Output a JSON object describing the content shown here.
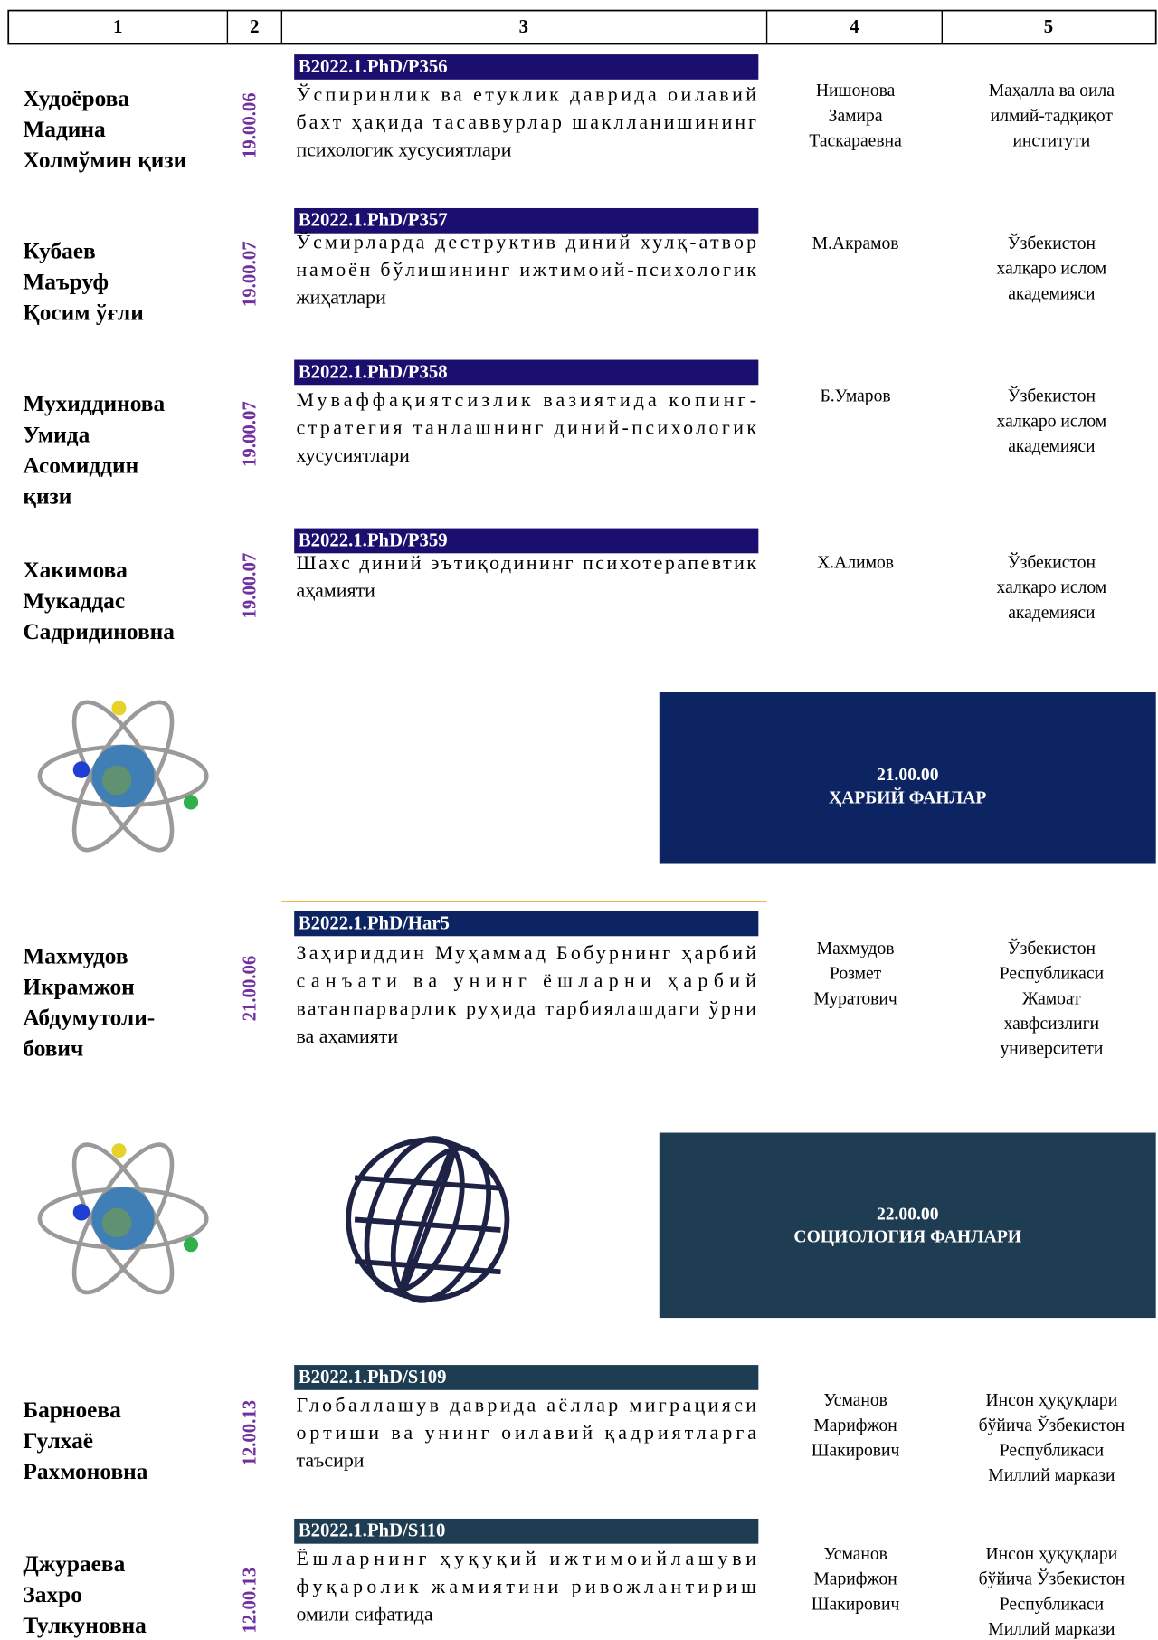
{
  "header": [
    "1",
    "2",
    "3",
    "4",
    "5"
  ],
  "entries": [
    {
      "name": [
        "Худоёрова",
        "Мадина",
        "Холмўмин қизи"
      ],
      "specialty": "19.00.06",
      "reg": "B2022.1.PhD/P356",
      "title": [
        "Ўспиринлик ва етуклик даврида оилавий",
        "бахт ҳақида тасаввурлар шаклланишининг",
        "психологик хусусиятлари"
      ],
      "advisor": [
        "Нишонова",
        "Замира",
        "Таскараевна"
      ],
      "institution": [
        "Маҳалла ва оила",
        "илмий-тадқиқот",
        "институти"
      ]
    },
    {
      "name": [
        "Кубаев",
        "Маъруф",
        "Қосим ўғли"
      ],
      "specialty": "19.00.07",
      "reg": "B2022.1.PhD/P357",
      "title": [
        "Ўсмирларда деструктив диний хулқ-атвор",
        "намоён бўлишининг ижтимоий-психологик",
        "жиҳатлари"
      ],
      "advisor": [
        "М.Акрамов"
      ],
      "institution": [
        "Ўзбекистон",
        "халқаро ислом",
        "академияси"
      ]
    },
    {
      "name": [
        "Мухиддинова",
        "Умида",
        "Асомиддин",
        "қизи"
      ],
      "specialty": "19.00.07",
      "reg": "B2022.1.PhD/P358",
      "title": [
        "Муваффақиятсизлик вазиятида копинг-",
        "стратегия танлашнинг диний-психологик",
        "хусусиятлари"
      ],
      "advisor": [
        "Б.Умаров"
      ],
      "institution": [
        "Ўзбекистон",
        "халқаро ислом",
        "академияси"
      ]
    },
    {
      "name": [
        "Хакимова",
        "Мукаддас",
        "Садридиновна"
      ],
      "specialty": "19.00.07",
      "reg": "B2022.1.PhD/P359",
      "title": [
        "Шахс диний эътиқодининг психотерапевтик",
        "аҳамияти"
      ],
      "advisor": [
        "Х.Алимов"
      ],
      "institution": [
        "Ўзбекистон",
        "халқаро ислом",
        "академияси"
      ]
    },
    {
      "name": [
        "Махмудов",
        "Икрамжон",
        "Абдумутоли-",
        "бович"
      ],
      "specialty": "21.00.06",
      "reg": "B2022.1.PhD/Har5",
      "title": [
        "Заҳириддин Муҳаммад Бобурнинг ҳарбий",
        "санъати ва унинг ёшларни ҳарбий",
        "ватанпарварлик руҳида тарбиялашдаги ўрни",
        "ва аҳамияти"
      ],
      "advisor": [
        "Махмудов",
        "Розмет",
        "Муратович"
      ],
      "institution": [
        "Ўзбекистон",
        "Республикаси",
        "Жамоат",
        "хавфсизлиги",
        "университети"
      ]
    },
    {
      "name": [
        "Барноева",
        "Гулхаё",
        "Рахмоновна"
      ],
      "specialty": "12.00.13",
      "reg": "B2022.1.PhD/S109",
      "title": [
        "Глобаллашув даврида аёллар миграцияси",
        "ортиши ва унинг оилавий қадриятларга",
        "таъсири"
      ],
      "advisor": [
        "Усманов",
        "Марифжон",
        "Шакирович"
      ],
      "institution": [
        "Инсон ҳуқуқлари",
        "бўйича Ўзбекистон",
        "Республикаси",
        "Миллий маркази"
      ]
    },
    {
      "name": [
        "Джураева",
        "Захро",
        "Тулкуновна"
      ],
      "specialty": "12.00.13",
      "reg": "B2022.1.PhD/S110",
      "title": [
        "Ёшларнинг ҳуқуқий ижтимоийлашуви",
        "фуқаролик жамиятини ривожлантириш",
        "омили сифатида"
      ],
      "advisor": [
        "Усманов",
        "Марифжон",
        "Шакирович"
      ],
      "institution": [
        "Инсон ҳуқуқлари",
        "бўйича Ўзбекистон",
        "Республикаси",
        "Миллий маркази"
      ]
    }
  ],
  "sections": [
    {
      "code": "21.00.00",
      "title": "ҲАРБИЙ ФАНЛАР"
    },
    {
      "code": "22.00.00",
      "title": "СОЦИОЛОГИЯ ФАНЛАРИ"
    }
  ]
}
